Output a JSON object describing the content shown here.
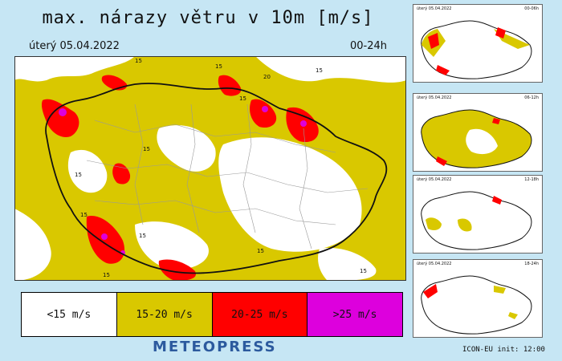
{
  "title": "max. nárazy větru v 10m [m/s]",
  "date": "úterý 05.04.2022",
  "period": "00-24h",
  "legend": [
    {
      "label": "<15 m/s",
      "color": "#ffffff"
    },
    {
      "label": "15-20 m/s",
      "color": "#d9c800"
    },
    {
      "label": "20-25 m/s",
      "color": "#ff0000"
    },
    {
      "label": ">25 m/s",
      "color": "#dd00dd"
    }
  ],
  "brand": "METEOPRESS",
  "model_info": "ICON-EU init: 12:00",
  "contour_labels": [
    "15",
    "15",
    "20",
    "15",
    "15",
    "15",
    "15",
    "15",
    "15",
    "15",
    "15",
    "15"
  ],
  "thumbnails": [
    {
      "date": "úterý 05.04.2022",
      "period": "00-06h"
    },
    {
      "date": "úterý 05.04.2022",
      "period": "06-12h"
    },
    {
      "date": "úterý 05.04.2022",
      "period": "12-18h"
    },
    {
      "date": "úterý 05.04.2022",
      "period": "18-24h"
    }
  ]
}
